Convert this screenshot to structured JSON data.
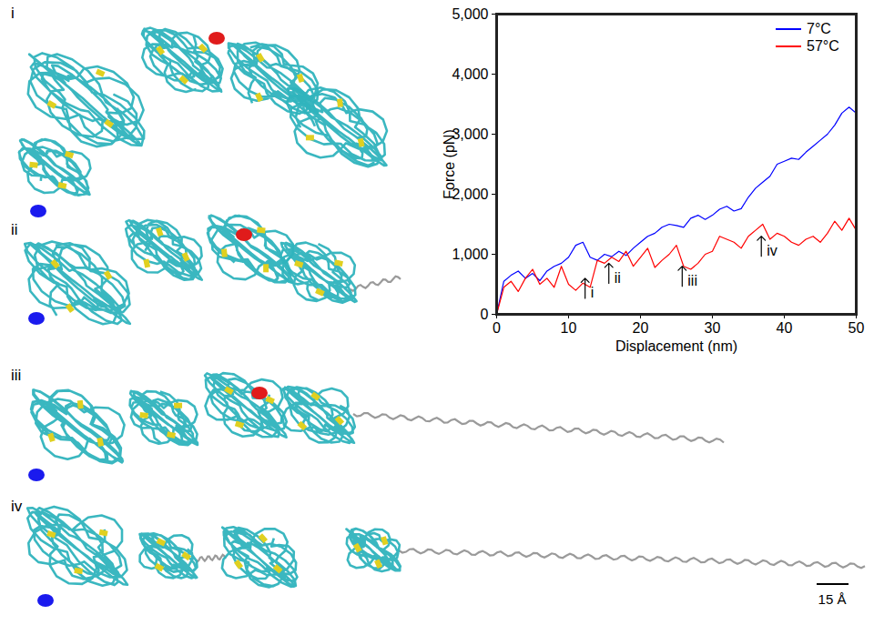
{
  "chart_data": {
    "type": "line",
    "x": [
      0,
      1,
      2,
      3,
      4,
      5,
      6,
      7,
      8,
      9,
      10,
      11,
      12,
      13,
      14,
      15,
      16,
      17,
      18,
      19,
      20,
      21,
      22,
      23,
      24,
      25,
      26,
      27,
      28,
      29,
      30,
      31,
      32,
      33,
      34,
      35,
      36,
      37,
      38,
      39,
      40,
      41,
      42,
      43,
      44,
      45,
      46,
      47,
      48,
      49,
      50
    ],
    "series": [
      {
        "name": "7°C",
        "color": "#0000ff",
        "values": [
          0,
          550,
          650,
          720,
          600,
          680,
          560,
          720,
          800,
          850,
          950,
          1150,
          1200,
          950,
          900,
          1000,
          960,
          1050,
          980,
          1100,
          1200,
          1300,
          1350,
          1450,
          1500,
          1480,
          1450,
          1600,
          1650,
          1580,
          1650,
          1750,
          1800,
          1720,
          1760,
          1950,
          2100,
          2200,
          2300,
          2500,
          2550,
          2600,
          2580,
          2700,
          2800,
          2900,
          3000,
          3150,
          3350,
          3450,
          3350
        ]
      },
      {
        "name": "57°C",
        "color": "#ff0000",
        "values": [
          0,
          450,
          550,
          380,
          600,
          750,
          500,
          600,
          450,
          800,
          500,
          400,
          520,
          450,
          900,
          850,
          950,
          880,
          1050,
          800,
          950,
          1100,
          780,
          900,
          1000,
          1150,
          800,
          750,
          850,
          1000,
          1050,
          1300,
          1250,
          1200,
          1100,
          1300,
          1400,
          1500,
          1250,
          1350,
          1300,
          1200,
          1150,
          1250,
          1300,
          1200,
          1350,
          1550,
          1400,
          1600,
          1400
        ]
      }
    ],
    "x_label": "Displacement (nm)",
    "y_label": "Force (pN)",
    "xlim": [
      0,
      50
    ],
    "ylim": [
      0,
      5000
    ],
    "xticks": [
      0,
      10,
      20,
      30,
      40,
      50
    ],
    "yticks": [
      0,
      1000,
      2000,
      3000,
      4000,
      5000
    ],
    "grid": false,
    "legend": "top-right",
    "annotations": [
      {
        "text": "i",
        "x": 12.3,
        "y": 600
      },
      {
        "text": "ii",
        "x": 15.6,
        "y": 850
      },
      {
        "text": "iii",
        "x": 25.8,
        "y": 800
      },
      {
        "text": "iv",
        "x": 36.8,
        "y": 1300
      }
    ]
  },
  "structures": {
    "panels": [
      {
        "label": "i"
      },
      {
        "label": "ii"
      },
      {
        "label": "iii"
      },
      {
        "label": "iv"
      }
    ],
    "scale_bar": "15 Å"
  }
}
